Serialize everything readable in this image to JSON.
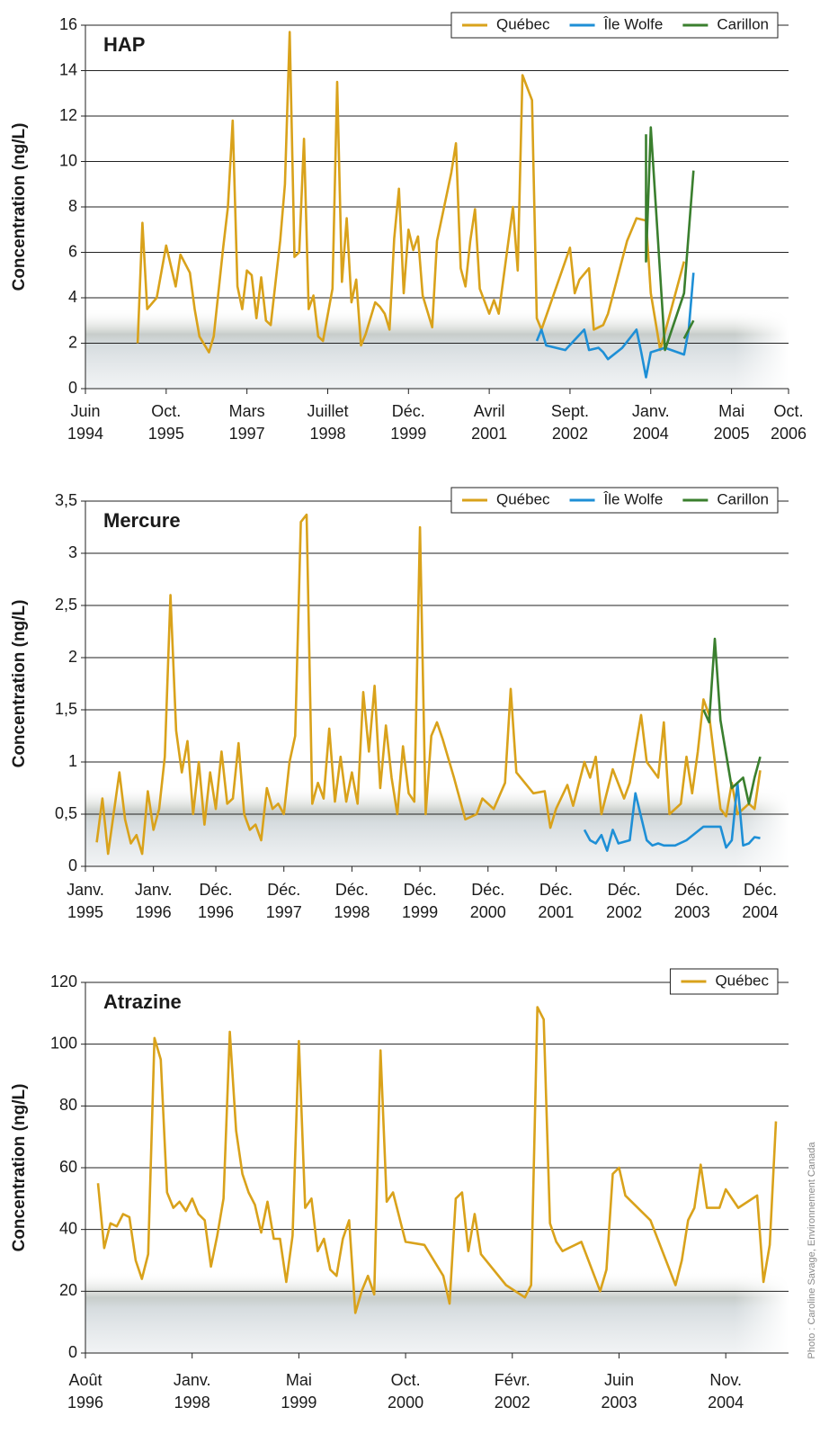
{
  "chart_data": [
    {
      "type": "line",
      "title": "HAP",
      "y_label": "Concentration (ng/L)",
      "legend": "upper right",
      "grid": true,
      "xlim": [
        "1994-06",
        "2006-10"
      ],
      "xticks": [
        {
          "value": "1994-06",
          "label": "Juin\n1994"
        },
        {
          "value": "1995-11",
          "label": "Oct.\n1995"
        },
        {
          "value": "1997-04",
          "label": "Mars\n1997"
        },
        {
          "value": "1998-09",
          "label": "Juillet\n1998"
        },
        {
          "value": "2000-02",
          "label": "Déc.\n1999"
        },
        {
          "value": "2001-07",
          "label": "Avril\n2001"
        },
        {
          "value": "2002-12",
          "label": "Sept.\n2002"
        },
        {
          "value": "2004-05",
          "label": "Janv.\n2004"
        },
        {
          "value": "2005-10",
          "label": "Mai\n2005"
        },
        {
          "value": "2006-10",
          "label": "Oct.\n2006"
        }
      ],
      "ylim": [
        0,
        16
      ],
      "yticks": [
        0,
        2,
        4,
        6,
        8,
        10,
        12,
        14,
        16
      ],
      "series": [
        {
          "name": "Québec",
          "color": "#d9a21b",
          "x": [
            "1995-05",
            "1995-06",
            "1995-07",
            "1995-09",
            "1995-11",
            "1996-01",
            "1996-02",
            "1996-04",
            "1996-05",
            "1996-06",
            "1996-08",
            "1996-09",
            "1996-11",
            "1996-12",
            "1997-01",
            "1997-02",
            "1997-03",
            "1997-04",
            "1997-05",
            "1997-06",
            "1997-07",
            "1997-08",
            "1997-09",
            "1997-11",
            "1997-12",
            "1998-01",
            "1998-02",
            "1998-03",
            "1998-04",
            "1998-05",
            "1998-06",
            "1998-07",
            "1998-08",
            "1998-10",
            "1998-11",
            "1998-12",
            "1999-01",
            "1999-02",
            "1999-03",
            "1999-04",
            "1999-05",
            "1999-07",
            "1999-08",
            "1999-09",
            "1999-10",
            "1999-11",
            "1999-12",
            "2000-01",
            "2000-02",
            "2000-03",
            "2000-04",
            "2000-05",
            "2000-07",
            "2000-08",
            "2000-11",
            "2000-12",
            "2001-01",
            "2001-02",
            "2001-03",
            "2001-04",
            "2001-05",
            "2001-07",
            "2001-08",
            "2001-09",
            "2001-12",
            "2002-01",
            "2002-02",
            "2002-04",
            "2002-05",
            "2002-06",
            "2002-12",
            "2003-01",
            "2003-02",
            "2003-04",
            "2003-05",
            "2003-07",
            "2003-08",
            "2003-12",
            "2004-02",
            "2004-04",
            "2004-05",
            "2004-07",
            "2004-12"
          ],
          "values": [
            2.0,
            7.3,
            3.5,
            4.0,
            6.3,
            4.5,
            5.9,
            5.1,
            3.5,
            2.3,
            1.6,
            2.3,
            6.2,
            8.0,
            11.8,
            4.5,
            3.5,
            5.2,
            5.0,
            3.1,
            4.9,
            3.0,
            2.8,
            6.5,
            9.0,
            15.7,
            5.8,
            6.0,
            11.0,
            3.5,
            4.1,
            2.3,
            2.1,
            4.4,
            13.5,
            4.7,
            7.5,
            3.8,
            4.8,
            1.9,
            2.4,
            3.8,
            3.6,
            3.3,
            2.6,
            6.6,
            8.8,
            4.2,
            7.0,
            6.1,
            6.7,
            4.1,
            2.7,
            6.5,
            9.5,
            10.8,
            5.3,
            4.5,
            6.5,
            7.9,
            4.4,
            3.3,
            3.9,
            3.3,
            8.0,
            5.2,
            13.8,
            12.7,
            3.1,
            2.6,
            6.2,
            4.2,
            4.8,
            5.3,
            2.6,
            2.8,
            3.3,
            6.5,
            7.5,
            7.4,
            4.2,
            1.7,
            5.6
          ]
        },
        {
          "name": "Île Wolfe",
          "color": "#1e8fd6",
          "x": [
            "2002-05",
            "2002-06",
            "2002-07",
            "2002-11",
            "2003-03",
            "2003-04",
            "2003-06",
            "2003-07",
            "2003-08",
            "2003-11",
            "2004-02",
            "2004-03",
            "2004-04",
            "2004-05",
            "2004-08",
            "2004-12",
            "2005-01",
            "2005-02"
          ],
          "values": [
            2.1,
            2.6,
            1.9,
            1.7,
            2.6,
            1.7,
            1.8,
            1.6,
            1.3,
            1.8,
            2.6,
            1.6,
            0.5,
            1.6,
            1.8,
            1.5,
            2.6,
            5.1
          ]
        },
        {
          "name": "Carillon",
          "color": "#3a7f2e",
          "x": [
            "2004-04",
            "2004-04",
            "2004-05",
            "2004-08",
            "2004-12",
            "2005-02",
            "2005-01",
            "2004-12",
            "2005-02"
          ],
          "values": [
            11.2,
            5.6,
            11.5,
            1.7,
            4.2,
            9.6,
            null,
            2.2,
            3.0
          ]
        }
      ]
    },
    {
      "type": "line",
      "title": "Mercure",
      "y_label": "Concentration (ng/L)",
      "legend": "upper right",
      "grid": true,
      "xlim": [
        "1995-01",
        "2005-05"
      ],
      "xticks": [
        {
          "value": "1995-01",
          "label": "Janv.\n1995"
        },
        {
          "value": "1996-01",
          "label": "Janv.\n1996"
        },
        {
          "value": "1996-12",
          "label": "Déc.\n1996"
        },
        {
          "value": "1997-12",
          "label": "Déc.\n1997"
        },
        {
          "value": "1998-12",
          "label": "Déc.\n1998"
        },
        {
          "value": "1999-12",
          "label": "Déc.\n1999"
        },
        {
          "value": "2000-12",
          "label": "Déc.\n2000"
        },
        {
          "value": "2001-12",
          "label": "Déc.\n2001"
        },
        {
          "value": "2002-12",
          "label": "Déc.\n2002"
        },
        {
          "value": "2003-12",
          "label": "Déc.\n2003"
        },
        {
          "value": "2004-12",
          "label": "Déc.\n2004"
        }
      ],
      "ylim": [
        0,
        3.5
      ],
      "yticks": [
        0,
        {
          "value": 0.5,
          "label": "0,5"
        },
        1,
        {
          "value": 1.5,
          "label": "1,5"
        },
        2,
        {
          "value": 2.5,
          "label": "2,5"
        },
        3,
        {
          "value": 3.5,
          "label": "3,5"
        }
      ],
      "series": [
        {
          "name": "Québec",
          "color": "#d9a21b",
          "x": [
            "1995-03",
            "1995-04",
            "1995-05",
            "1995-07",
            "1995-08",
            "1995-09",
            "1995-10",
            "1995-11",
            "1995-12",
            "1996-01",
            "1996-02",
            "1996-03",
            "1996-04",
            "1996-05",
            "1996-06",
            "1996-07",
            "1996-08",
            "1996-09",
            "1996-10",
            "1996-11",
            "1996-12",
            "1997-01",
            "1997-02",
            "1997-03",
            "1997-04",
            "1997-05",
            "1997-06",
            "1997-07",
            "1997-08",
            "1997-09",
            "1997-10",
            "1997-11",
            "1997-12",
            "1998-01",
            "1998-02",
            "1998-03",
            "1998-04",
            "1998-05",
            "1998-06",
            "1998-07",
            "1998-08",
            "1998-09",
            "1998-10",
            "1998-11",
            "1998-12",
            "1999-01",
            "1999-02",
            "1999-03",
            "1999-04",
            "1999-05",
            "1999-06",
            "1999-07",
            "1999-08",
            "1999-09",
            "1999-10",
            "1999-11",
            "1999-12",
            "2000-01",
            "2000-02",
            "2000-03",
            "2000-04",
            "2000-06",
            "2000-08",
            "2000-10",
            "2000-11",
            "2001-01",
            "2001-03",
            "2001-04",
            "2001-05",
            "2001-08",
            "2001-10",
            "2001-11",
            "2001-12",
            "2002-02",
            "2002-03",
            "2002-05",
            "2002-06",
            "2002-07",
            "2002-08",
            "2002-10",
            "2002-12",
            "2003-01",
            "2003-03",
            "2003-04",
            "2003-06",
            "2003-07",
            "2003-08",
            "2003-10",
            "2003-11",
            "2003-12",
            "2004-01",
            "2004-02",
            "2004-03",
            "2004-05",
            "2004-06",
            "2004-07",
            "2004-08",
            "2004-10",
            "2004-11",
            "2004-12"
          ],
          "values": [
            0.23,
            0.65,
            0.12,
            0.9,
            0.45,
            0.22,
            0.3,
            0.12,
            0.72,
            0.35,
            0.55,
            1.05,
            2.6,
            1.3,
            0.9,
            1.2,
            0.5,
            1.0,
            0.4,
            0.9,
            0.55,
            1.1,
            0.6,
            0.65,
            1.18,
            0.5,
            0.35,
            0.4,
            0.25,
            0.75,
            0.55,
            0.6,
            0.5,
            1.0,
            1.25,
            3.3,
            3.37,
            0.6,
            0.8,
            0.65,
            1.32,
            0.62,
            1.05,
            0.62,
            0.9,
            0.6,
            1.67,
            1.1,
            1.73,
            0.75,
            1.35,
            0.85,
            0.5,
            1.15,
            0.7,
            0.62,
            3.25,
            0.5,
            1.25,
            1.38,
            1.22,
            0.85,
            0.45,
            0.5,
            0.65,
            0.55,
            0.8,
            1.7,
            0.9,
            0.7,
            0.72,
            0.37,
            0.55,
            0.78,
            0.58,
            1.0,
            0.85,
            1.05,
            0.5,
            0.93,
            0.65,
            0.8,
            1.45,
            1.0,
            0.85,
            1.38,
            0.5,
            0.6,
            1.05,
            0.7,
            1.1,
            1.6,
            1.45,
            0.55,
            0.48,
            0.8,
            0.5,
            0.6,
            0.55,
            0.92
          ]
        },
        {
          "name": "Île Wolfe",
          "color": "#1e8fd6",
          "x": [
            "2002-05",
            "2002-06",
            "2002-07",
            "2002-08",
            "2002-09",
            "2002-10",
            "2002-11",
            "2003-01",
            "2003-02",
            "2003-04",
            "2003-05",
            "2003-06",
            "2003-07",
            "2003-09",
            "2003-11",
            "2004-02",
            "2004-05",
            "2004-06",
            "2004-07",
            "2004-08",
            "2004-09",
            "2004-10",
            "2004-11",
            "2004-12"
          ],
          "values": [
            0.35,
            0.25,
            0.22,
            0.3,
            0.15,
            0.35,
            0.22,
            0.25,
            0.7,
            0.25,
            0.2,
            0.22,
            0.2,
            0.2,
            0.25,
            0.38,
            0.38,
            0.18,
            0.25,
            0.8,
            0.2,
            0.22,
            0.28,
            0.27
          ]
        },
        {
          "name": "Carillon",
          "color": "#3a7f2e",
          "x": [
            "2004-02",
            "2004-03",
            "2004-04",
            "2004-05",
            "2004-07",
            "2004-09",
            "2004-10",
            "2004-11",
            "2004-12"
          ],
          "values": [
            1.5,
            1.38,
            2.18,
            1.4,
            0.75,
            0.85,
            0.6,
            0.85,
            1.05
          ]
        }
      ]
    },
    {
      "type": "line",
      "title": "Atrazine",
      "y_label": "Concentration (ng/L)",
      "legend": "upper right",
      "grid": true,
      "xlim": [
        "1996-08",
        "2005-12"
      ],
      "xticks": [
        {
          "value": "1996-08",
          "label": "Août\n1996"
        },
        {
          "value": "1998-01",
          "label": "Janv.\n1998"
        },
        {
          "value": "1999-06",
          "label": "Mai\n1999"
        },
        {
          "value": "2000-11",
          "label": "Oct.\n2000"
        },
        {
          "value": "2002-04",
          "label": "Févr.\n2002"
        },
        {
          "value": "2003-09",
          "label": "Juin\n2003"
        },
        {
          "value": "2005-02",
          "label": "Nov.\n2004"
        }
      ],
      "ylim": [
        0,
        120
      ],
      "yticks": [
        0,
        20,
        40,
        60,
        80,
        100,
        120
      ],
      "series": [
        {
          "name": "Québec",
          "color": "#d9a21b",
          "x": [
            "1996-10",
            "1996-11",
            "1996-12",
            "1997-01",
            "1997-02",
            "1997-03",
            "1997-04",
            "1997-05",
            "1997-06",
            "1997-07",
            "1997-08",
            "1997-09",
            "1997-10",
            "1997-11",
            "1997-12",
            "1998-01",
            "1998-02",
            "1998-03",
            "1998-04",
            "1998-05",
            "1998-06",
            "1998-07",
            "1998-08",
            "1998-09",
            "1998-10",
            "1998-11",
            "1998-12",
            "1999-01",
            "1999-02",
            "1999-03",
            "1999-04",
            "1999-05",
            "1999-06",
            "1999-07",
            "1999-08",
            "1999-09",
            "1999-10",
            "1999-11",
            "1999-12",
            "2000-01",
            "2000-02",
            "2000-03",
            "2000-04",
            "2000-05",
            "2000-06",
            "2000-07",
            "2000-08",
            "2000-09",
            "2000-10",
            "2000-11",
            "2001-02",
            "2001-05",
            "2001-06",
            "2001-07",
            "2001-08",
            "2001-09",
            "2001-10",
            "2001-11",
            "2002-03",
            "2002-06",
            "2002-07",
            "2002-08",
            "2002-09",
            "2002-10",
            "2002-11",
            "2002-12",
            "2003-03",
            "2003-06",
            "2003-07",
            "2003-08",
            "2003-09",
            "2003-10",
            "2004-02",
            "2004-06",
            "2004-07",
            "2004-08",
            "2004-09",
            "2004-10",
            "2004-11",
            "2005-01",
            "2005-02",
            "2005-04",
            "2005-07",
            "2005-08",
            "2005-09",
            "2005-10"
          ],
          "values": [
            55,
            34,
            42,
            41,
            45,
            44,
            30,
            24,
            32,
            102,
            95,
            52,
            47,
            49,
            46,
            50,
            45,
            43,
            28,
            38,
            50,
            104,
            72,
            58,
            52,
            48,
            39,
            49,
            37,
            37,
            23,
            38,
            101,
            47,
            50,
            33,
            37,
            27,
            25,
            37,
            43,
            13,
            20,
            25,
            19,
            98,
            49,
            52,
            44,
            36,
            35,
            25,
            16,
            50,
            52,
            33,
            45,
            32,
            22,
            18,
            22,
            112,
            108,
            42,
            36,
            33,
            36,
            20,
            27,
            58,
            60,
            51,
            43,
            22,
            30,
            43,
            47,
            61,
            47,
            47,
            53,
            47,
            51,
            23,
            35,
            75
          ]
        }
      ]
    }
  ],
  "photo_credit": "Photo : Caroline Savage, Environnement Canada"
}
